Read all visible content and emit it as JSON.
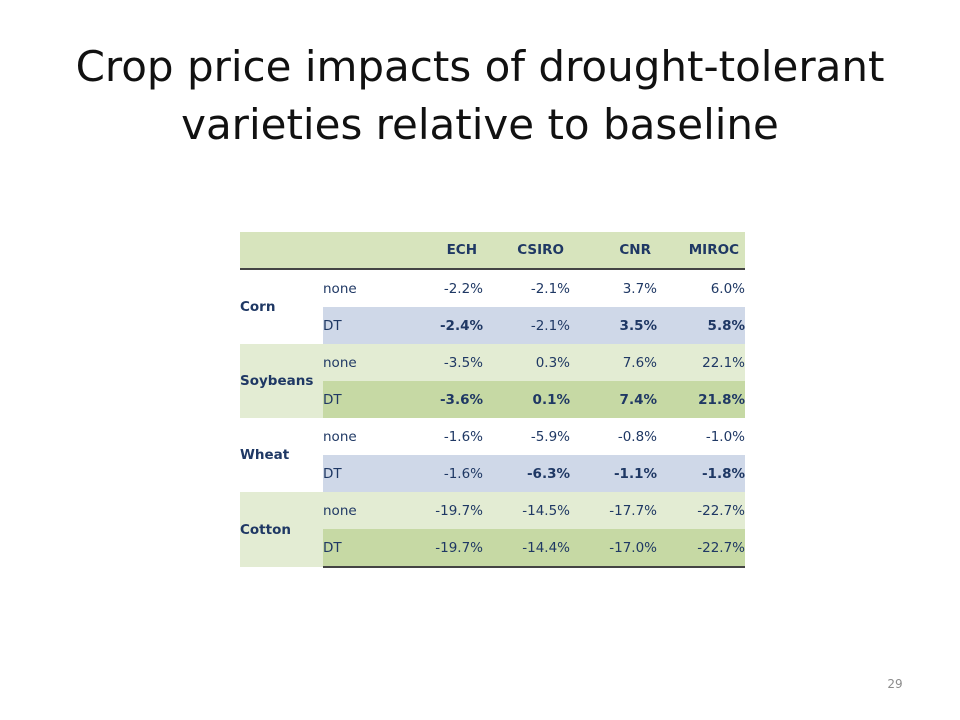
{
  "slide": {
    "title_line1": "Crop price impacts of drought-tolerant",
    "title_line2": "varieties relative to baseline",
    "page_number": "29"
  },
  "table": {
    "columns": [
      "ECH",
      "CSIRO",
      "CNR",
      "MIROC"
    ],
    "crops": [
      {
        "name": "Corn",
        "rows": [
          {
            "scenario": "none",
            "values": [
              "-2.2%",
              "-2.1%",
              "3.7%",
              "6.0%"
            ]
          },
          {
            "scenario": "DT",
            "values": [
              "-2.4%",
              "-2.1%",
              "3.5%",
              "5.8%"
            ]
          }
        ]
      },
      {
        "name": "Soybeans",
        "rows": [
          {
            "scenario": "none",
            "values": [
              "-3.5%",
              "0.3%",
              "7.6%",
              "22.1%"
            ]
          },
          {
            "scenario": "DT",
            "values": [
              "-3.6%",
              "0.1%",
              "7.4%",
              "21.8%"
            ]
          }
        ]
      },
      {
        "name": "Wheat",
        "rows": [
          {
            "scenario": "none",
            "values": [
              "-1.6%",
              "-5.9%",
              "-0.8%",
              "-1.0%"
            ]
          },
          {
            "scenario": "DT",
            "values": [
              "-1.6%",
              "-6.3%",
              "-1.1%",
              "-1.8%"
            ]
          }
        ]
      },
      {
        "name": "Cotton",
        "rows": [
          {
            "scenario": "none",
            "values": [
              "-19.7%",
              "-14.5%",
              "-17.7%",
              "-22.7%"
            ]
          },
          {
            "scenario": "DT",
            "values": [
              "-19.7%",
              "-14.4%",
              "-17.0%",
              "-22.7%"
            ]
          }
        ]
      }
    ]
  },
  "colors": {
    "header_bg": "#d7e4bd",
    "blue_band": "#cfd8e8",
    "light_green_band": "#e3ecd3",
    "green_band": "#c6d9a4",
    "text": "#1f3864"
  }
}
